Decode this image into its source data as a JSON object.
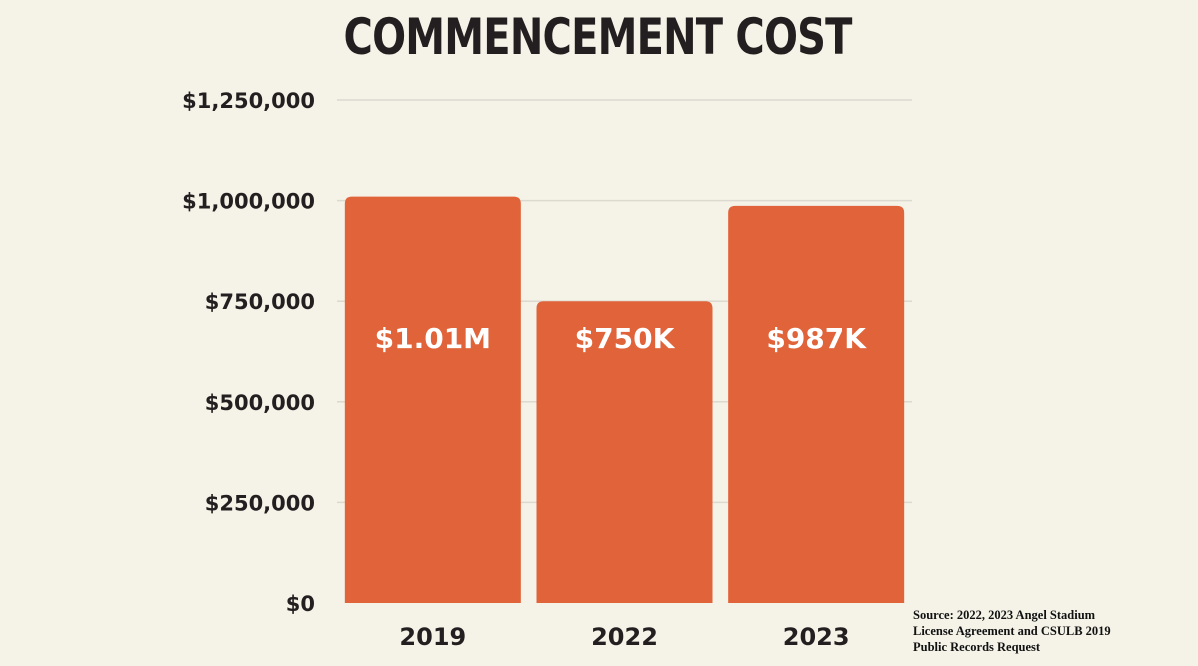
{
  "chart_data": {
    "type": "bar",
    "title": "COMMENCEMENT COST",
    "categories": [
      "2019",
      "2022",
      "2023"
    ],
    "values": [
      1010000,
      750000,
      987000
    ],
    "data_labels": [
      "$1.01M",
      "$750K",
      "$987K"
    ],
    "ylim": [
      0,
      1250000
    ],
    "yticks": [
      0,
      250000,
      500000,
      750000,
      1000000,
      1250000
    ],
    "ytick_labels": [
      "$0",
      "$250,000",
      "$500,000",
      "$750,000",
      "$1,000,000",
      "$1,250,000"
    ],
    "xlabel": "",
    "ylabel": "",
    "grid": true,
    "legend": null
  },
  "colors": {
    "bar": "#e0633a",
    "grid": "#dcdad0",
    "background": "#f5f3e8"
  },
  "source": [
    "Source: 2022, 2023 Angel Stadium",
    "License Agreement and CSULB 2019",
    "Public Records Request"
  ]
}
